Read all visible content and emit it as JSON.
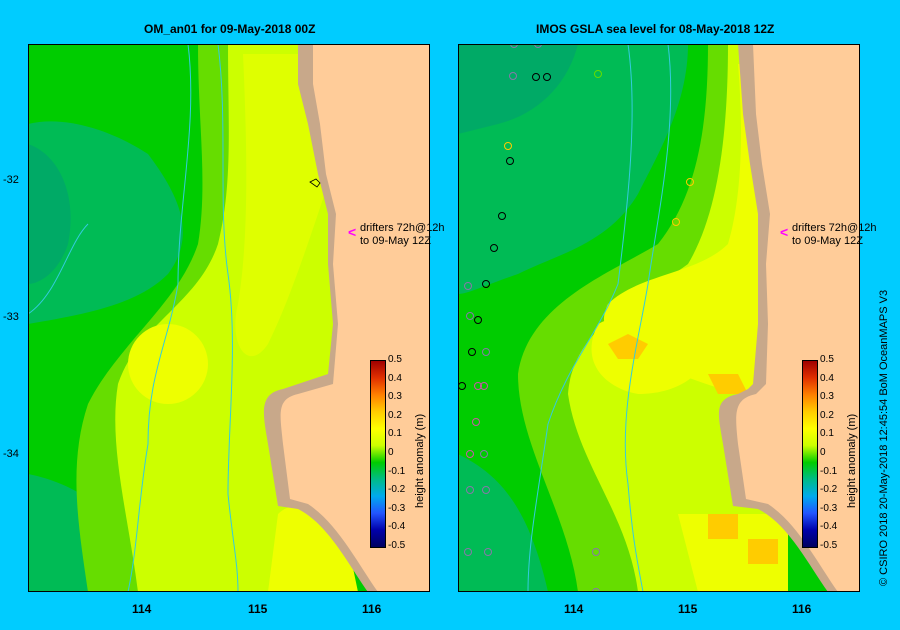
{
  "left_panel": {
    "title": "OM_an01  for 09-May-2018 00Z",
    "drifter_note": [
      "drifters 72h@12h",
      "to 09-May 12Z"
    ]
  },
  "right_panel": {
    "title": "IMOS  GSLA sea level   for 08-May-2018 12Z",
    "drifter_note": [
      "drifters 72h@12h",
      "to 09-May 12Z"
    ]
  },
  "axes": {
    "x_ticks": [
      "114",
      "115",
      "116"
    ],
    "y_ticks": [
      "-32",
      "-33",
      "-34"
    ]
  },
  "colorbar": {
    "label": "height anomaly (m)",
    "ticks": [
      "0.5",
      "0.4",
      "0.3",
      "0.2",
      "0.1",
      "0",
      "-0.1",
      "-0.2",
      "-0.3",
      "-0.4",
      "-0.5"
    ],
    "colors": [
      "#a00000",
      "#e03000",
      "#ff8000",
      "#ffcc00",
      "#ffff00",
      "#ccff00",
      "#00cc00",
      "#00bb88",
      "#00aaee",
      "#2255ff",
      "#0000aa",
      "#000060"
    ]
  },
  "credit": "© CSIRO 2018   20-May-2018 12:45:54 BoM OceanMAPS V3",
  "map_colors": {
    "land": "#ffcc99",
    "shelf": "#c8a88a",
    "dark_green": "#00bb55",
    "green": "#00cc00",
    "light_green": "#66dd00",
    "yellow_green": "#ccff00",
    "yellow": "#eeff00",
    "orange": "#ffcc00",
    "bathy": "#33ccdd"
  }
}
